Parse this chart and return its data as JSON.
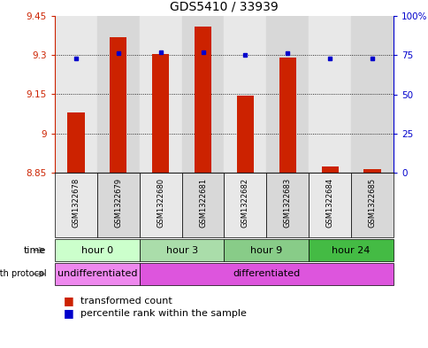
{
  "title": "GDS5410 / 33939",
  "samples": [
    "GSM1322678",
    "GSM1322679",
    "GSM1322680",
    "GSM1322681",
    "GSM1322682",
    "GSM1322683",
    "GSM1322684",
    "GSM1322685"
  ],
  "transformed_count": [
    9.08,
    9.37,
    9.305,
    9.41,
    9.145,
    9.29,
    8.875,
    8.865
  ],
  "percentile_rank": [
    73,
    76,
    77,
    77,
    75,
    76,
    73,
    73
  ],
  "ylim_left": [
    8.85,
    9.45
  ],
  "ylim_right": [
    0,
    100
  ],
  "yticks_left": [
    8.85,
    9.0,
    9.15,
    9.3,
    9.45
  ],
  "yticks_right": [
    0,
    25,
    50,
    75,
    100
  ],
  "ytick_labels_left": [
    "8.85",
    "9",
    "9.15",
    "9.3",
    "9.45"
  ],
  "ytick_labels_right": [
    "0",
    "25",
    "50",
    "75",
    "100%"
  ],
  "bar_color": "#cc2200",
  "dot_color": "#0000cc",
  "background_color": "#ffffff",
  "time_groups": [
    {
      "label": "hour 0",
      "samples": [
        0,
        1
      ],
      "color": "#ccffcc"
    },
    {
      "label": "hour 3",
      "samples": [
        2,
        3
      ],
      "color": "#aaddaa"
    },
    {
      "label": "hour 9",
      "samples": [
        4,
        5
      ],
      "color": "#88cc88"
    },
    {
      "label": "hour 24",
      "samples": [
        6,
        7
      ],
      "color": "#44bb44"
    }
  ],
  "growth_groups": [
    {
      "label": "undifferentiated",
      "samples": [
        0,
        1
      ],
      "color": "#ee88ee"
    },
    {
      "label": "differentiated",
      "samples": [
        2,
        7
      ],
      "color": "#dd55dd"
    }
  ],
  "col_bg_colors": [
    "#e8e8e8",
    "#d8d8d8",
    "#e8e8e8",
    "#d8d8d8",
    "#e8e8e8",
    "#d8d8d8",
    "#e8e8e8",
    "#d8d8d8"
  ]
}
